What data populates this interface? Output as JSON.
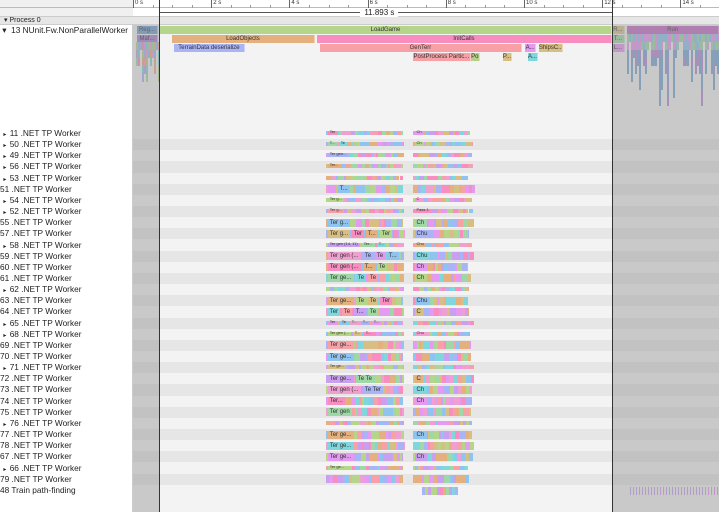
{
  "ruler": {
    "ticks": [
      "0 s",
      "2 s",
      "4 s",
      "6 s",
      "8 s",
      "10 s",
      "12 s",
      "14 s"
    ],
    "tick_seconds": [
      0,
      2,
      4,
      6,
      8,
      10,
      12,
      14
    ]
  },
  "selection": {
    "duration_label": "11.893 s",
    "start_s": 0.69,
    "end_s": 12.6
  },
  "process": {
    "label": "▾ Process 0"
  },
  "main_thread": {
    "label": "13 NUnit.Fw.NonParallelWorker",
    "slices": [
      {
        "label": "Reg...",
        "depth": 0,
        "start": 0.1,
        "end": 0.64,
        "color": "#6fa0d8"
      },
      {
        "label": "LoadGame",
        "depth": 0,
        "start": 0.69,
        "end": 12.25,
        "color": "#b5d58a"
      },
      {
        "label": "R...",
        "depth": 0,
        "start": 12.25,
        "end": 12.58,
        "color": "#d6c48e"
      },
      {
        "label": "Run",
        "depth": 0,
        "start": 12.63,
        "end": 15.0,
        "color": "#c46cc6"
      },
      {
        "label": "Maf...",
        "depth": 1,
        "start": 0.1,
        "end": 0.64,
        "color": "#a884d8"
      },
      {
        "label": "LoadObjects",
        "depth": 1,
        "start": 1.0,
        "end": 4.65,
        "color": "#e4b07e"
      },
      {
        "label": "InitCalls",
        "depth": 1,
        "start": 4.7,
        "end": 12.25,
        "color": "#f78ebf"
      },
      {
        "label": "T...",
        "depth": 1,
        "start": 12.25,
        "end": 12.58,
        "color": "#9fd7a6"
      },
      {
        "label": "TerrainData deserialize",
        "depth": 2,
        "start": 1.05,
        "end": 2.86,
        "color": "#a9b4f7"
      },
      {
        "label": "GenTerr",
        "depth": 2,
        "start": 4.78,
        "end": 9.95,
        "color": "#f7a0a6"
      },
      {
        "label": "A...",
        "depth": 2,
        "start": 10.03,
        "end": 10.31,
        "color": "#e39af0"
      },
      {
        "label": "ShipsC...",
        "depth": 2,
        "start": 10.38,
        "end": 11.0,
        "color": "#d7bf84"
      },
      {
        "label": "L...",
        "depth": 2,
        "start": 12.25,
        "end": 12.58,
        "color": "#e39af0"
      },
      {
        "label": "PostProcess Partic...",
        "depth": 3,
        "start": 7.16,
        "end": 8.64,
        "color": "#f7a0a6"
      },
      {
        "label": "Po",
        "depth": 3,
        "start": 8.64,
        "end": 8.87,
        "color": "#b5cf86"
      },
      {
        "label": "P...",
        "depth": 3,
        "start": 9.46,
        "end": 9.69,
        "color": "#d7bf84"
      },
      {
        "label": "A...",
        "depth": 3,
        "start": 10.1,
        "end": 10.36,
        "color": "#7fd6dc"
      }
    ]
  },
  "palette": [
    "#f78ebf",
    "#9fd7a6",
    "#a9b4f7",
    "#e4b07e",
    "#7fd6dc",
    "#e39af0",
    "#b5d58a",
    "#f7a0a6",
    "#8fc3f0",
    "#d7bf84",
    "#c9a0f0",
    "#f0a0d0"
  ],
  "threads": [
    {
      "name": "11 .NET TP Worker",
      "collapsed": true,
      "labels": [
        "Ter"
      ],
      "label2": "Ch"
    },
    {
      "name": "50 .NET TP Worker",
      "collapsed": true,
      "labels": [
        "T...",
        "Te"
      ],
      "label2": "Ch"
    },
    {
      "name": "49 .NET TP Worker",
      "collapsed": true,
      "labels": [
        "Ter gen..."
      ],
      "label2": ""
    },
    {
      "name": "56 .NET TP Worker",
      "collapsed": true,
      "labels": [
        "Ter..."
      ],
      "label2": ""
    },
    {
      "name": "53 .NET TP Worker",
      "collapsed": true,
      "labels": [],
      "label2": ""
    },
    {
      "name": "51 .NET TP Worker",
      "collapsed": false,
      "labels": [
        "",
        "T..."
      ],
      "label2": ""
    },
    {
      "name": "54 .NET TP Worker",
      "collapsed": true,
      "labels": [
        "Ter g..."
      ],
      "label2": "C"
    },
    {
      "name": "52 .NET TP Worker",
      "collapsed": true,
      "labels": [
        "Ter g..."
      ],
      "label2": "Pass 1"
    },
    {
      "name": "55 .NET TP Worker",
      "collapsed": false,
      "labels": [
        "Ter g..."
      ],
      "label2": "Ch"
    },
    {
      "name": "57 .NET TP Worker",
      "collapsed": false,
      "labels": [
        "Ter g...",
        "Ter",
        "T...",
        "Ter"
      ],
      "label2": "Chu"
    },
    {
      "name": "58 .NET TP Worker",
      "collapsed": true,
      "labels": [
        "Ter gen (14, 11)",
        "Ter...",
        "T..."
      ],
      "label2": "Chu"
    },
    {
      "name": "59 .NET TP Worker",
      "collapsed": false,
      "labels": [
        "Ter gen (...",
        "Te",
        "Te",
        "T..."
      ],
      "label2": "Chu"
    },
    {
      "name": "60 .NET TP Worker",
      "collapsed": false,
      "labels": [
        "Ter gen (...",
        "T...",
        "Te"
      ],
      "label2": "Ch"
    },
    {
      "name": "61 .NET TP Worker",
      "collapsed": false,
      "labels": [
        "Ter ge...",
        "Te",
        "Te"
      ],
      "label2": "Ch"
    },
    {
      "name": "62 .NET TP Worker",
      "collapsed": true,
      "labels": [],
      "label2": ""
    },
    {
      "name": "63 .NET TP Worker",
      "collapsed": false,
      "labels": [
        "Ter ge...",
        "Te",
        "Te",
        "Ter"
      ],
      "label2": "Chu"
    },
    {
      "name": "64 .NET TP Worker",
      "collapsed": false,
      "labels": [
        "Ter",
        "Te",
        "T...",
        "Te"
      ],
      "label2": "C"
    },
    {
      "name": "65 .NET TP Worker",
      "collapsed": true,
      "labels": [
        "Ter",
        "Te",
        "T...",
        "T...",
        "T..."
      ],
      "label2": ""
    },
    {
      "name": "68 .NET TP Worker",
      "collapsed": true,
      "labels": [
        "Ter gen (...",
        "T...",
        "T..."
      ],
      "label2": "Chu"
    },
    {
      "name": "69 .NET TP Worker",
      "collapsed": false,
      "labels": [
        "Ter ge..."
      ],
      "label2": ""
    },
    {
      "name": "70 .NET TP Worker",
      "collapsed": false,
      "labels": [
        "Ter ge..."
      ],
      "label2": ""
    },
    {
      "name": "71 .NET TP Worker",
      "collapsed": true,
      "labels": [
        "Ter ge..."
      ],
      "label2": ""
    },
    {
      "name": "72 .NET TP Worker",
      "collapsed": false,
      "labels": [
        "Ter ge...",
        "Te Te"
      ],
      "label2": "C"
    },
    {
      "name": "73 .NET TP Worker",
      "collapsed": false,
      "labels": [
        "Ter gen (...",
        "Te Ter"
      ],
      "label2": "Ch"
    },
    {
      "name": "74 .NET TP Worker",
      "collapsed": false,
      "labels": [
        "Ter..."
      ],
      "label2": "Ch"
    },
    {
      "name": "75 .NET TP Worker",
      "collapsed": false,
      "labels": [
        "Ter gen"
      ],
      "label2": ""
    },
    {
      "name": "76 .NET TP Worker",
      "collapsed": true,
      "labels": [],
      "label2": ""
    },
    {
      "name": "77 .NET TP Worker",
      "collapsed": false,
      "labels": [
        "Ter ge..."
      ],
      "label2": "Ch"
    },
    {
      "name": "78 .NET TP Worker",
      "collapsed": false,
      "labels": [
        "Ter ge..."
      ],
      "label2": ""
    },
    {
      "name": "67 .NET TP Worker",
      "collapsed": false,
      "labels": [
        "Ter ge..."
      ],
      "label2": "Ch"
    },
    {
      "name": "66 .NET TP Worker",
      "collapsed": true,
      "labels": [
        "Ter ge..."
      ],
      "label2": ""
    },
    {
      "name": "79 .NET TP Worker",
      "collapsed": false,
      "labels": [],
      "label2": ""
    },
    {
      "name": "48 Train path-finding",
      "collapsed": false,
      "labels": [],
      "label2": ""
    }
  ]
}
